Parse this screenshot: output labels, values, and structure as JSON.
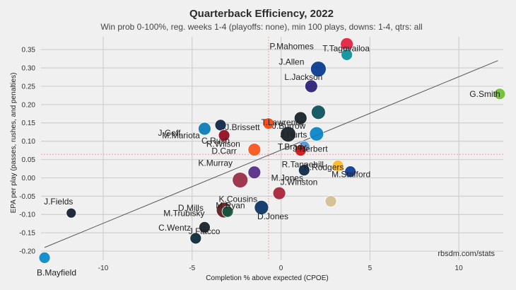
{
  "chart_data": {
    "type": "scatter",
    "title": "Quarterback Efficiency, 2022",
    "subtitle": "Win prob 0-100%, reg. weeks 1-4 (playoffs: none), min 100 plays, downs: 1-4, qtrs: all",
    "xlabel": "Completion % above expected (CPOE)",
    "ylabel": "EPA per play (passes, rushes, and penalties)",
    "credit": "rbsdm.com/stats",
    "xlim": [
      -13.5,
      12.5
    ],
    "ylim": [
      -0.225,
      0.385
    ],
    "x_ticks": [
      -10,
      -5,
      0,
      5,
      10
    ],
    "y_ticks": [
      -0.2,
      -0.15,
      -0.1,
      -0.05,
      0.0,
      0.05,
      0.1,
      0.15,
      0.2,
      0.25,
      0.3,
      0.35
    ],
    "mean_x": -0.7,
    "mean_y": 0.064,
    "trend_line": {
      "x": [
        -13.3,
        12.2
      ],
      "y": [
        -0.19,
        0.32
      ]
    },
    "grid": true,
    "points": [
      {
        "name": "P.Mahomes",
        "x": 3.7,
        "y": 0.365,
        "color": "#E31837"
      },
      {
        "name": "T.Tagovailoa",
        "x": 3.7,
        "y": 0.336,
        "color": "#008E97"
      },
      {
        "name": "J.Allen",
        "x": 2.1,
        "y": 0.297,
        "color": "#00338D"
      },
      {
        "name": "L.Jackson",
        "x": 1.7,
        "y": 0.25,
        "color": "#241773"
      },
      {
        "name": "G.Smith",
        "x": 12.3,
        "y": 0.229,
        "color": "#69BE28"
      },
      {
        "name": "J.Hurts",
        "x": 2.1,
        "y": 0.179,
        "color": "#004C54"
      },
      {
        "name": "T.Lawrence",
        "x": 1.1,
        "y": 0.163,
        "color": "#101820"
      },
      {
        "name": "J.Herbert",
        "x": 2.0,
        "y": 0.12,
        "color": "#0080C6"
      },
      {
        "name": "J.Brissett",
        "x": -0.7,
        "y": 0.148,
        "color": "#FF3C00"
      },
      {
        "name": "C.Rush",
        "x": -3.4,
        "y": 0.144,
        "color": "#041E42"
      },
      {
        "name": "J.Goff",
        "x": -4.3,
        "y": 0.134,
        "color": "#0076B6"
      },
      {
        "name": "D.Carr",
        "x": -3.2,
        "y": 0.116,
        "color": "#000000"
      },
      {
        "name": "M.Mariota",
        "x": -3.2,
        "y": 0.116,
        "color": "#A71930"
      },
      {
        "name": "J.Burrow",
        "x": 0.4,
        "y": 0.119,
        "color": "#101820"
      },
      {
        "name": "R.Tannehill",
        "x": 1.3,
        "y": 0.085,
        "color": "#4B92DB"
      },
      {
        "name": "T.Brady",
        "x": 1.1,
        "y": 0.075,
        "color": "#D50A0A"
      },
      {
        "name": "R.Wilson",
        "x": -1.5,
        "y": 0.077,
        "color": "#FB4F14"
      },
      {
        "name": "A.Rodgers",
        "x": 3.2,
        "y": 0.033,
        "color": "#FFB612"
      },
      {
        "name": "M.Jones",
        "x": 1.3,
        "y": 0.021,
        "color": "#002244"
      },
      {
        "name": "M.Stafford",
        "x": 3.9,
        "y": 0.017,
        "color": "#003594"
      },
      {
        "name": "K.Cousins",
        "x": -1.5,
        "y": 0.015,
        "color": "#4F2683"
      },
      {
        "name": "K.Murray",
        "x": -2.3,
        "y": -0.006,
        "color": "#97233F"
      },
      {
        "name": "D.Jones",
        "x": -0.1,
        "y": -0.042,
        "color": "#A71930"
      },
      {
        "name": "J.Winston",
        "x": 2.8,
        "y": -0.064,
        "color": "#D3BC8D"
      },
      {
        "name": "M.Ryan",
        "x": -1.1,
        "y": -0.081,
        "color": "#002C5F"
      },
      {
        "name": "C.Wentz",
        "x": -3.2,
        "y": -0.088,
        "color": "#5A1414"
      },
      {
        "name": "J.Flacco",
        "x": -3.0,
        "y": -0.092,
        "color": "#125740"
      },
      {
        "name": "J.Fields",
        "x": -11.8,
        "y": -0.096,
        "color": "#0B162A"
      },
      {
        "name": "M.Trubisky",
        "x": -4.3,
        "y": -0.135,
        "color": "#101820"
      },
      {
        "name": "D.Mills",
        "x": -4.8,
        "y": -0.165,
        "color": "#03202F"
      },
      {
        "name": "B.Mayfield",
        "x": -13.3,
        "y": -0.218,
        "color": "#0085CA"
      }
    ]
  }
}
